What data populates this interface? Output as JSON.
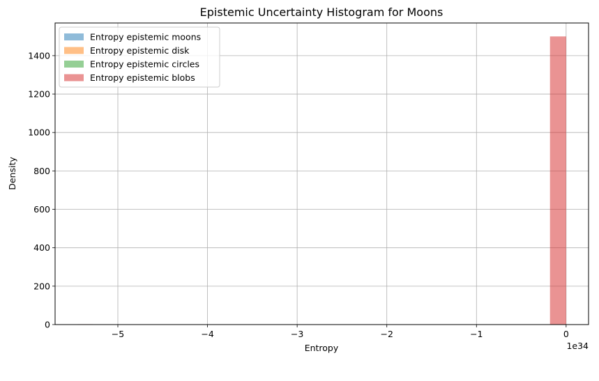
{
  "chart_data": {
    "type": "bar",
    "title": "Epistemic Uncertainty Histogram for Moons",
    "xlabel": "Entropy",
    "ylabel": "Density",
    "x_offset_label": "1e34",
    "xlim": [
      -5.7,
      0.25
    ],
    "ylim": [
      0,
      1570
    ],
    "x_unit_scale": 1e+34,
    "x_ticks": [
      {
        "value": -5,
        "label": "−5"
      },
      {
        "value": -4,
        "label": "−4"
      },
      {
        "value": -3,
        "label": "−3"
      },
      {
        "value": -2,
        "label": "−2"
      },
      {
        "value": -1,
        "label": "−1"
      },
      {
        "value": 0,
        "label": "0"
      }
    ],
    "y_ticks": [
      {
        "value": 0,
        "label": "0"
      },
      {
        "value": 200,
        "label": "200"
      },
      {
        "value": 400,
        "label": "400"
      },
      {
        "value": 600,
        "label": "600"
      },
      {
        "value": 800,
        "label": "800"
      },
      {
        "value": 1000,
        "label": "1000"
      },
      {
        "value": 1200,
        "label": "1200"
      },
      {
        "value": 1400,
        "label": "1400"
      }
    ],
    "grid": true,
    "legend_position": "top-left",
    "series": [
      {
        "name": "Entropy epistemic moons",
        "color": "#1f77b4",
        "alpha": 0.5,
        "bins": []
      },
      {
        "name": "Entropy epistemic disk",
        "color": "#ff7f0e",
        "alpha": 0.5,
        "bins": []
      },
      {
        "name": "Entropy epistemic circles",
        "color": "#2ca02c",
        "alpha": 0.5,
        "bins": []
      },
      {
        "name": "Entropy epistemic blobs",
        "color": "#d62728",
        "alpha": 0.5,
        "bins": [
          {
            "x0": -5.45,
            "x1": -5.28,
            "value": 2
          },
          {
            "x0": -0.18,
            "x1": 0.0,
            "value": 1500
          }
        ]
      }
    ]
  }
}
